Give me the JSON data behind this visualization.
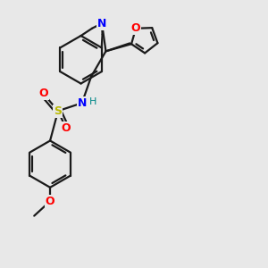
{
  "bg_color": "#e8e8e8",
  "bond_color": "#1a1a1a",
  "N_color": "#0000ff",
  "O_color": "#ff0000",
  "S_color": "#b8b800",
  "H_color": "#008888",
  "line_width": 1.6,
  "figsize": [
    3.0,
    3.0
  ],
  "dpi": 100,
  "xlim": [
    0,
    10
  ],
  "ylim": [
    0,
    10
  ]
}
